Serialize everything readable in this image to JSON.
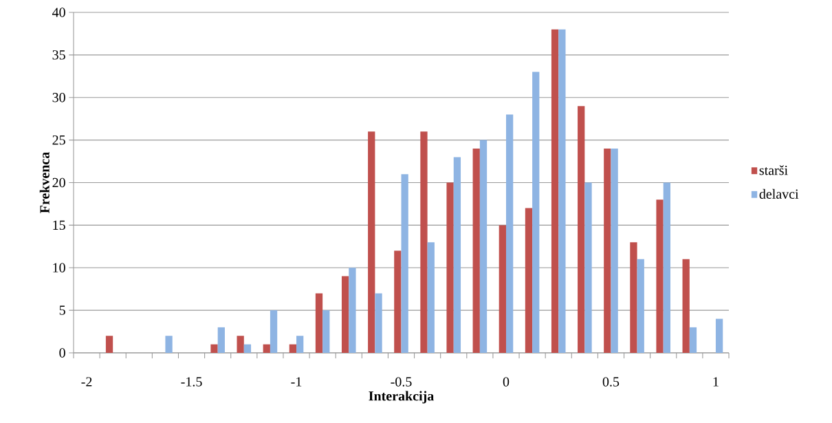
{
  "chart_data": {
    "type": "bar",
    "xlabel": "Interakcija",
    "ylabel": "Frekvenca",
    "categories": [
      "-2",
      null,
      null,
      null,
      "-1.5",
      null,
      null,
      null,
      "-1",
      null,
      null,
      null,
      "-0.5",
      null,
      null,
      null,
      "0",
      null,
      null,
      null,
      "0.5",
      null,
      null,
      null,
      "1"
    ],
    "series": [
      {
        "name": "starši",
        "color": "#c0504d",
        "values": [
          0,
          2,
          0,
          0,
          0,
          1,
          2,
          1,
          1,
          7,
          9,
          26,
          12,
          26,
          20,
          24,
          15,
          17,
          38,
          29,
          24,
          13,
          18,
          11,
          0
        ]
      },
      {
        "name": "delavci",
        "color": "#8eb4e3",
        "values": [
          0,
          0,
          0,
          2,
          0,
          3,
          1,
          5,
          2,
          5,
          10,
          7,
          21,
          13,
          23,
          25,
          28,
          33,
          38,
          20,
          24,
          11,
          20,
          3,
          4
        ]
      }
    ],
    "ylim": [
      0,
      40
    ],
    "yticks": [
      0,
      5,
      10,
      15,
      20,
      25,
      30,
      35,
      40
    ],
    "grid": "y",
    "legend": "right"
  }
}
